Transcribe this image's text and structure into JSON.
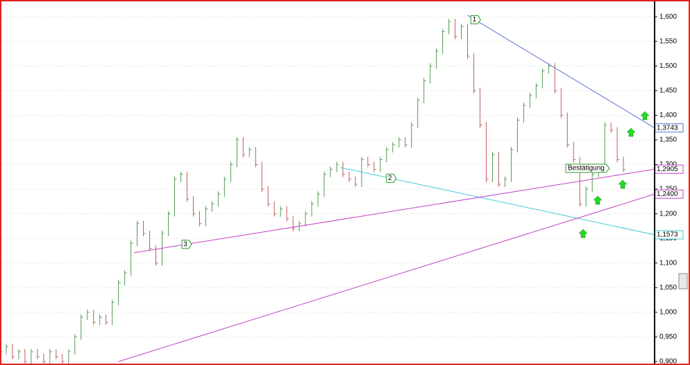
{
  "chart_data": {
    "type": "range-bar",
    "values": [
      0.92,
      0.93,
      0.91,
      0.92,
      0.9,
      0.92,
      0.91,
      0.9,
      0.92,
      0.91,
      0.9,
      0.92,
      0.95,
      0.99,
      1.0,
      0.98,
      0.99,
      0.98,
      1.02,
      1.06,
      1.08,
      1.14,
      1.18,
      1.16,
      1.13,
      1.1,
      1.16,
      1.2,
      1.27,
      1.28,
      1.23,
      1.2,
      1.18,
      1.21,
      1.22,
      1.24,
      1.27,
      1.3,
      1.35,
      1.32,
      1.33,
      1.3,
      1.25,
      1.22,
      1.2,
      1.21,
      1.19,
      1.17,
      1.18,
      1.2,
      1.22,
      1.24,
      1.28,
      1.29,
      1.3,
      1.28,
      1.27,
      1.26,
      1.31,
      1.3,
      1.29,
      1.31,
      1.33,
      1.34,
      1.35,
      1.34,
      1.38,
      1.43,
      1.47,
      1.5,
      1.53,
      1.57,
      1.59,
      1.56,
      1.58,
      1.52,
      1.45,
      1.38,
      1.27,
      1.32,
      1.26,
      1.27,
      1.33,
      1.39,
      1.42,
      1.44,
      1.46,
      1.49,
      1.5,
      1.45,
      1.4,
      1.34,
      1.31,
      1.22,
      1.25,
      1.28,
      1.29,
      1.38,
      1.37,
      1.31,
      1.29
    ],
    "up_color": "#4f9a4f",
    "down_color": "#c05a5a",
    "xlim": [
      0,
      105
    ],
    "ylim": [
      0.893,
      1.634
    ],
    "yticks": [
      {
        "value": 0.9,
        "label": "0,900"
      },
      {
        "value": 0.95,
        "label": "0,950"
      },
      {
        "value": 1.0,
        "label": "1,000"
      },
      {
        "value": 1.05,
        "label": "1,050"
      },
      {
        "value": 1.1,
        "label": "1,100"
      },
      {
        "value": 1.15,
        "label": "1,150"
      },
      {
        "value": 1.2,
        "label": "1,200"
      },
      {
        "value": 1.25,
        "label": "1,250"
      },
      {
        "value": 1.3,
        "label": "1,300"
      },
      {
        "value": 1.35,
        "label": "1,350"
      },
      {
        "value": 1.4,
        "label": "1,400"
      },
      {
        "value": 1.45,
        "label": "1,450"
      },
      {
        "value": 1.5,
        "label": "1,500"
      },
      {
        "value": 1.55,
        "label": "1,550"
      },
      {
        "value": 1.6,
        "label": "1,600"
      }
    ],
    "grid": true,
    "trendlines": [
      {
        "x": [
          75,
          105
        ],
        "y": [
          1.603,
          1.3743
        ],
        "color": "#5a6fd0",
        "label": "1,3743",
        "tag": "1"
      },
      {
        "x": [
          54.6,
          105
        ],
        "y": [
          1.294,
          1.1573
        ],
        "color": "#40c8d8",
        "label": "1,1573",
        "tag": "2"
      },
      {
        "x": [
          21.5,
          105
        ],
        "y": [
          1.121,
          1.2905
        ],
        "color": "#c040c0",
        "label": "1,2905",
        "tag": "3"
      },
      {
        "x": [
          19,
          105
        ],
        "y": [
          0.9,
          1.24
        ],
        "color": "#c040c0",
        "label": "1,2400"
      }
    ],
    "annotation": "Bestätigung"
  }
}
